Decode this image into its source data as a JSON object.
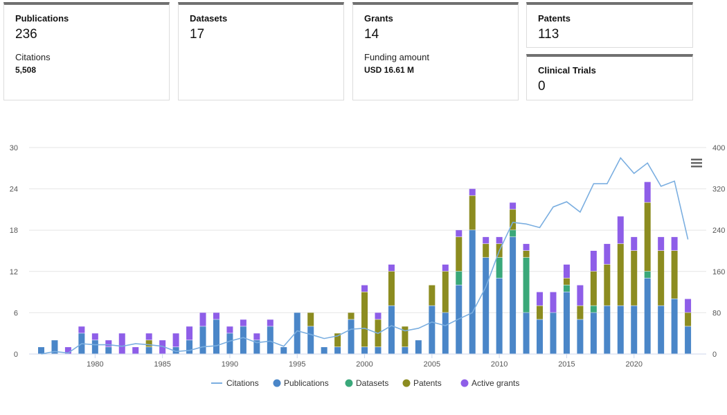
{
  "cards": {
    "publications": {
      "label": "Publications",
      "value": "236",
      "sub_label": "Citations",
      "sub_value": "5,508"
    },
    "datasets": {
      "label": "Datasets",
      "value": "17"
    },
    "grants": {
      "label": "Grants",
      "value": "14",
      "sub_label": "Funding amount",
      "sub_value": "USD 16.61 M"
    },
    "patents": {
      "label": "Patents",
      "value": "113"
    },
    "clinical_trials": {
      "label": "Clinical Trials",
      "value": "0"
    }
  },
  "menu_icon": "hamburger-menu-icon",
  "chart_data": {
    "type": "bar",
    "stacked": true,
    "years": [
      1976,
      1977,
      1978,
      1979,
      1980,
      1981,
      1982,
      1983,
      1984,
      1985,
      1986,
      1987,
      1988,
      1989,
      1990,
      1991,
      1992,
      1993,
      1994,
      1995,
      1996,
      1997,
      1998,
      1999,
      2000,
      2001,
      2002,
      2003,
      2004,
      2005,
      2006,
      2007,
      2008,
      2009,
      2010,
      2011,
      2012,
      2013,
      2014,
      2015,
      2016,
      2017,
      2018,
      2019,
      2020,
      2021,
      2022,
      2023,
      2024
    ],
    "x_ticks": [
      "1980",
      "1985",
      "1990",
      "1995",
      "2000",
      "2005",
      "2010",
      "2015",
      "2020"
    ],
    "y_left_ticks": [
      "0",
      "6",
      "12",
      "18",
      "24",
      "30"
    ],
    "y_right_ticks": [
      "0",
      "80",
      "160",
      "240",
      "320",
      "400"
    ],
    "ylim_left": [
      0,
      30
    ],
    "ylim_right": [
      0,
      400
    ],
    "series": [
      {
        "name": "Publications",
        "color": "#4a86c8",
        "values": [
          1,
          2,
          0,
          3,
          2,
          1,
          0,
          0,
          1,
          0,
          1,
          2,
          4,
          5,
          3,
          4,
          2,
          4,
          1,
          6,
          4,
          1,
          1,
          5,
          1,
          1,
          7,
          1,
          2,
          7,
          6,
          10,
          18,
          14,
          11,
          17,
          6,
          5,
          6,
          9,
          5,
          6,
          7,
          7,
          7,
          11,
          7,
          8,
          4
        ]
      },
      {
        "name": "Datasets",
        "color": "#3aa87a",
        "values": [
          0,
          0,
          0,
          0,
          0,
          0,
          0,
          0,
          0,
          0,
          0,
          0,
          0,
          0,
          0,
          0,
          0,
          0,
          0,
          0,
          0,
          0,
          0,
          0,
          0,
          0,
          0,
          0,
          0,
          0,
          0,
          2,
          0,
          0,
          3,
          1,
          8,
          0,
          0,
          1,
          0,
          1,
          0,
          0,
          0,
          1,
          0,
          0,
          0
        ]
      },
      {
        "name": "Patents",
        "color": "#8c8c20",
        "values": [
          0,
          0,
          0,
          0,
          0,
          0,
          0,
          0,
          1,
          0,
          0,
          0,
          0,
          0,
          0,
          0,
          0,
          0,
          0,
          0,
          2,
          0,
          2,
          1,
          8,
          4,
          5,
          3,
          0,
          3,
          6,
          5,
          5,
          2,
          2,
          3,
          1,
          2,
          0,
          1,
          2,
          5,
          6,
          9,
          8,
          10,
          8,
          7,
          2
        ]
      },
      {
        "name": "Active grants",
        "color": "#8e5ee8",
        "values": [
          0,
          0,
          1,
          1,
          1,
          1,
          3,
          1,
          1,
          2,
          2,
          2,
          2,
          1,
          1,
          1,
          1,
          1,
          0,
          0,
          0,
          0,
          0,
          0,
          1,
          1,
          1,
          0,
          0,
          0,
          1,
          1,
          1,
          1,
          1,
          1,
          1,
          2,
          3,
          2,
          3,
          3,
          3,
          4,
          2,
          3,
          2,
          2,
          2
        ]
      }
    ],
    "line": {
      "name": "Citations",
      "color": "#7aaee0",
      "axis": "right",
      "values": [
        0,
        5,
        2,
        20,
        18,
        18,
        15,
        20,
        18,
        15,
        5,
        7,
        14,
        16,
        25,
        32,
        22,
        25,
        15,
        45,
        38,
        30,
        35,
        48,
        50,
        40,
        55,
        45,
        50,
        62,
        55,
        68,
        80,
        130,
        200,
        255,
        252,
        245,
        285,
        295,
        275,
        330,
        330,
        380,
        350,
        370,
        325,
        335,
        222
      ]
    },
    "legend": [
      "Citations",
      "Publications",
      "Datasets",
      "Patents",
      "Active grants"
    ]
  }
}
